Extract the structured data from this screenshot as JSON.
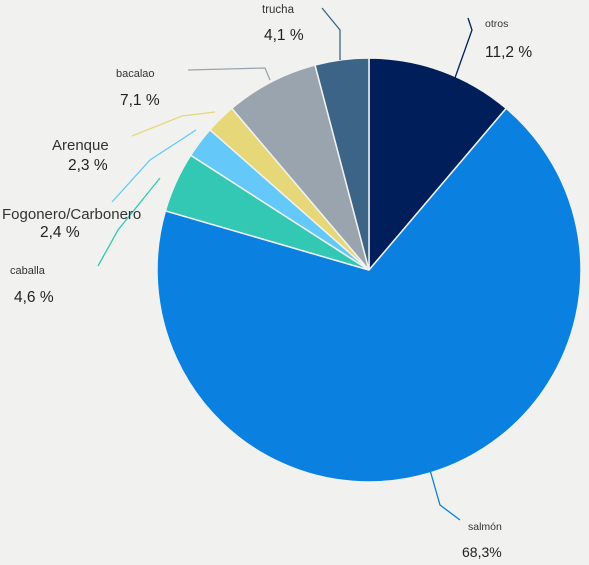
{
  "chart_data": {
    "type": "pie",
    "start": "12 o'clock",
    "direction": "clockwise",
    "slices": [
      {
        "label": "otros",
        "value": 11.2,
        "value_label": "11,2 %",
        "color": "#001e5a"
      },
      {
        "label": "salmón",
        "value": 68.3,
        "value_label": "68,3%",
        "color": "#0a80e0"
      },
      {
        "label": "caballa",
        "value": 4.6,
        "value_label": "4,6 %",
        "color": "#32c8b4"
      },
      {
        "label": "Fogonero/Carbonero",
        "value": 2.4,
        "value_label": "2,4 %",
        "color": "#64c8f8"
      },
      {
        "label": "Arenque",
        "value": 2.3,
        "value_label": "2,3 %",
        "color": "#e6d778"
      },
      {
        "label": "bacalao",
        "value": 7.1,
        "value_label": "7,1 %",
        "color": "#9aa4ae"
      },
      {
        "label": "trucha",
        "value": 4.1,
        "value_label": "4,1 %",
        "color": "#3c6486"
      }
    ]
  }
}
